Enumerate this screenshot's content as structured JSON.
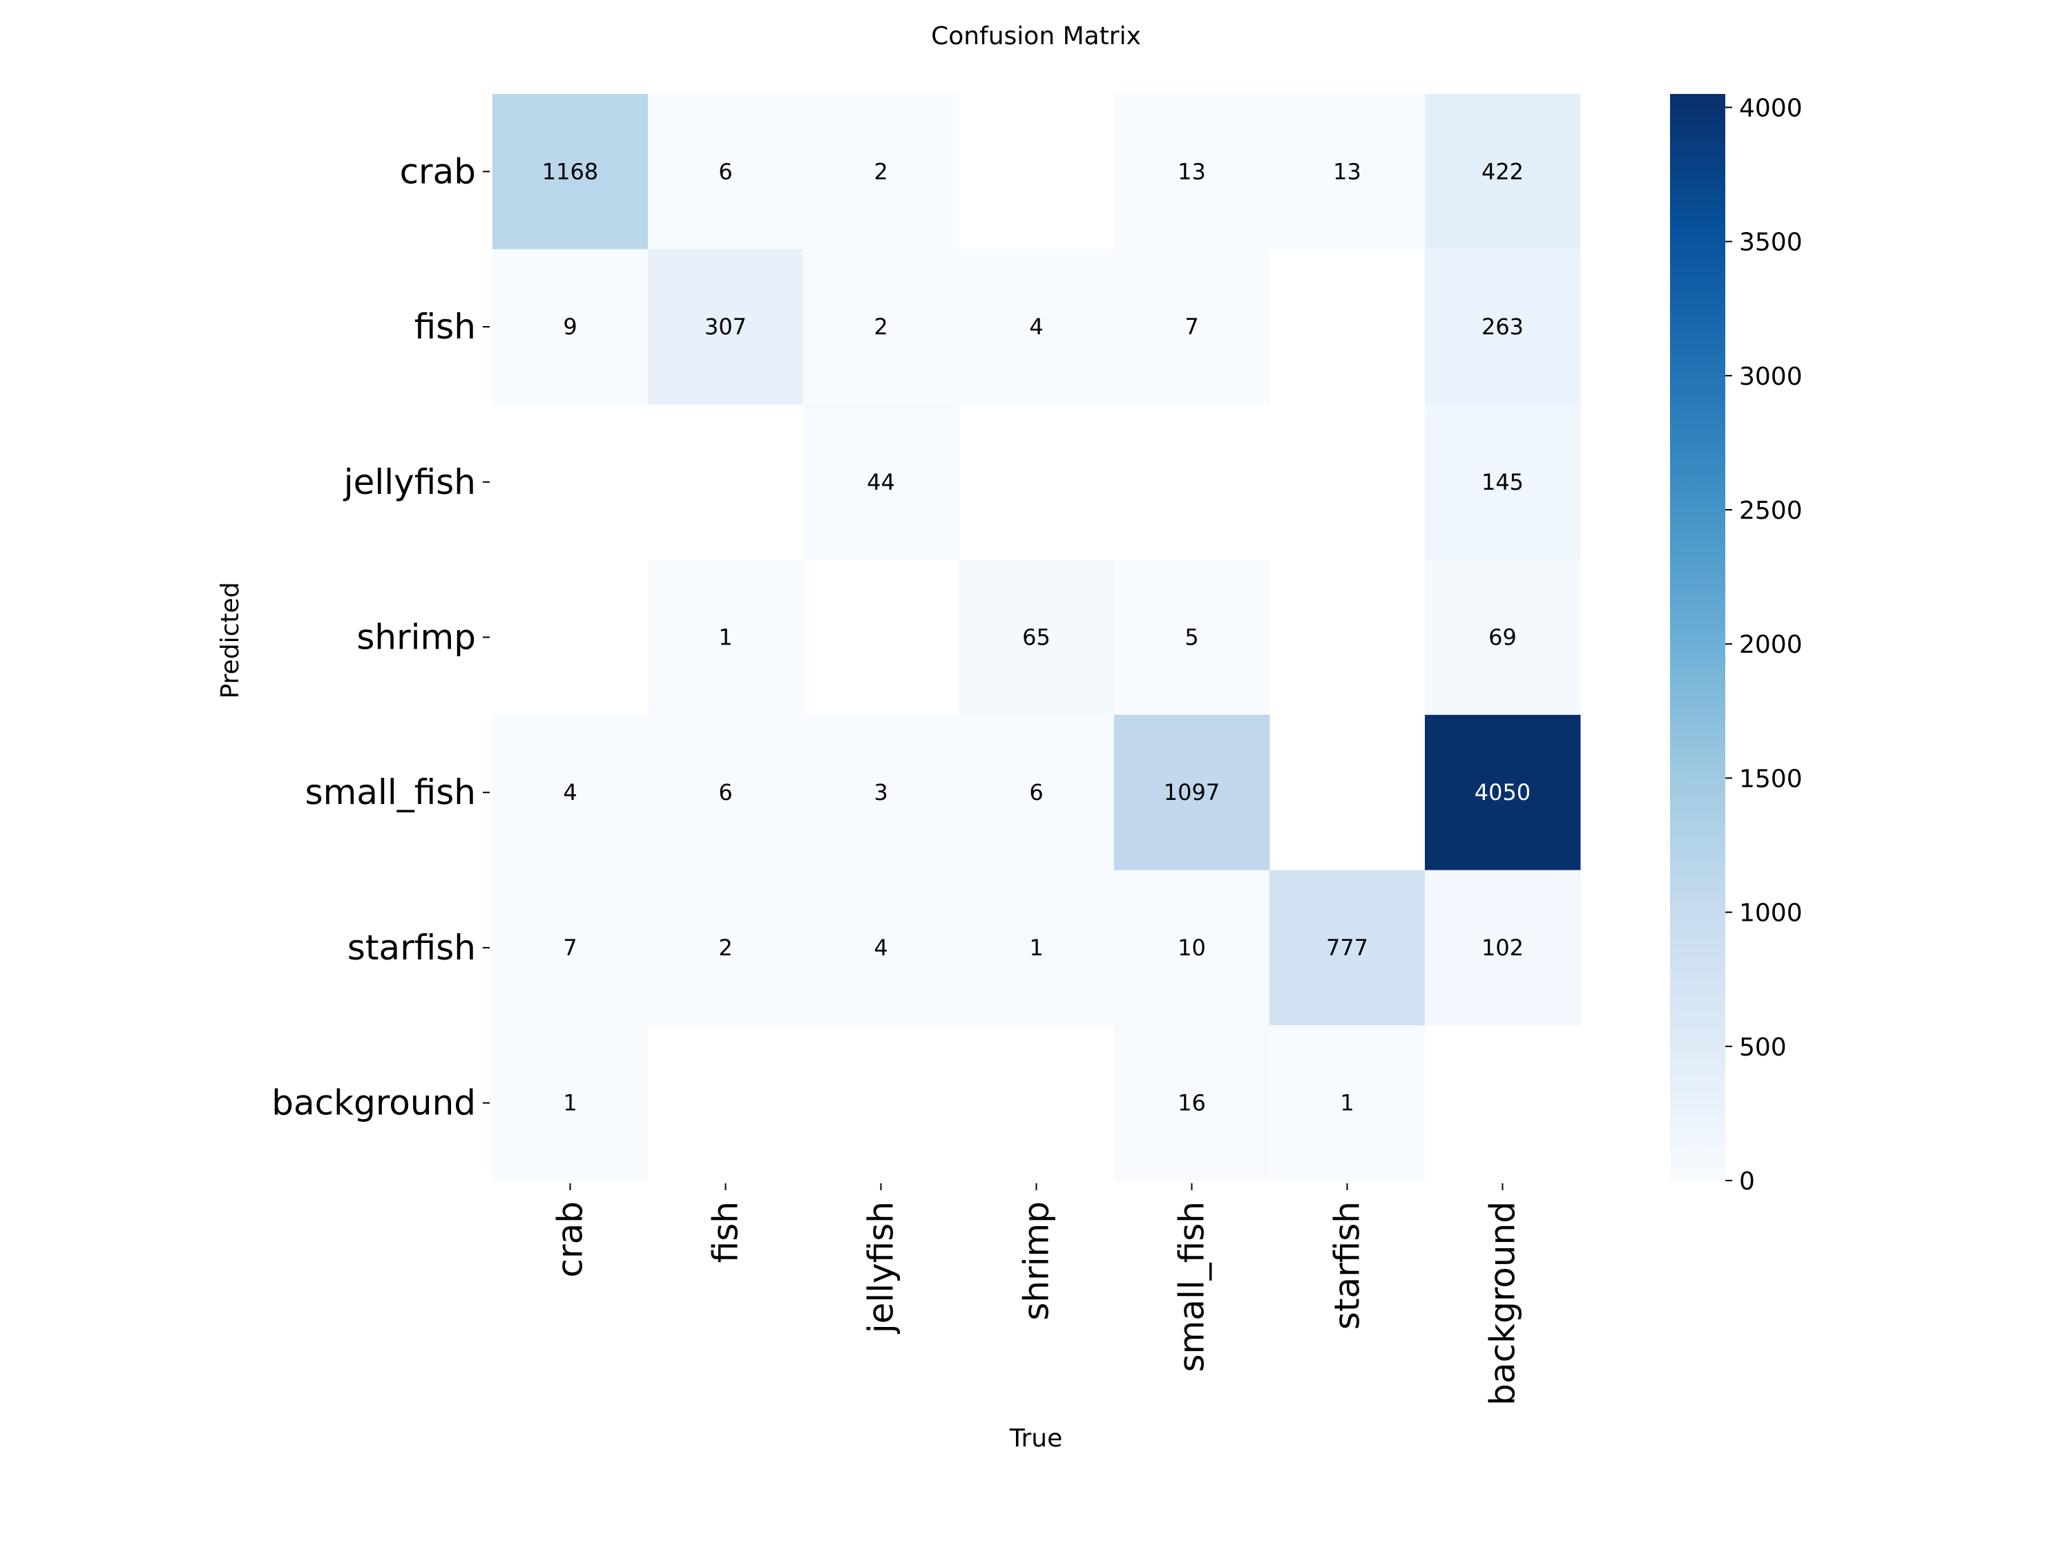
{
  "chart_data": {
    "type": "heatmap",
    "title": "Confusion Matrix",
    "xlabel": "True",
    "ylabel": "Predicted",
    "x_categories": [
      "crab",
      "fish",
      "jellyfish",
      "shrimp",
      "small_fish",
      "starfish",
      "background"
    ],
    "y_categories": [
      "crab",
      "fish",
      "jellyfish",
      "shrimp",
      "small_fish",
      "starfish",
      "background"
    ],
    "values": [
      [
        1168,
        6,
        2,
        null,
        13,
        13,
        422
      ],
      [
        9,
        307,
        2,
        4,
        7,
        null,
        263
      ],
      [
        null,
        null,
        44,
        null,
        null,
        null,
        145
      ],
      [
        null,
        1,
        null,
        65,
        5,
        null,
        69
      ],
      [
        4,
        6,
        3,
        6,
        1097,
        null,
        4050
      ],
      [
        7,
        2,
        4,
        1,
        10,
        777,
        102
      ],
      [
        1,
        null,
        null,
        null,
        16,
        1,
        null
      ]
    ],
    "colorscale": "Blues",
    "vmin": 0,
    "vmax": 4050,
    "colorbar_ticks": [
      0,
      500,
      1000,
      1500,
      2000,
      2500,
      3000,
      3500,
      4000
    ],
    "grid": false,
    "colorbar_position": "right"
  }
}
